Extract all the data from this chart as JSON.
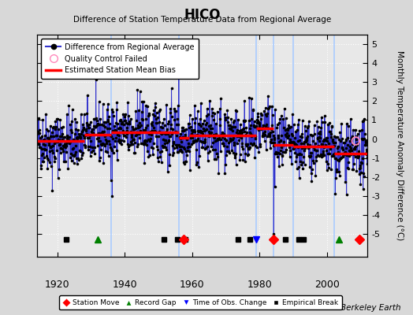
{
  "title": "HICO",
  "subtitle": "Difference of Station Temperature Data from Regional Average",
  "ylabel": "Monthly Temperature Anomaly Difference (°C)",
  "credit": "Berkeley Earth",
  "xlim": [
    1914,
    2012
  ],
  "ylim": [
    -6.2,
    5.5
  ],
  "yticks_right": [
    -5,
    -4,
    -3,
    -2,
    -1,
    0,
    1,
    2,
    3,
    4,
    5
  ],
  "ytick_labels_right": [
    "-5",
    "-4",
    "-3",
    "-2",
    "-1",
    "0",
    "1",
    "2",
    "3",
    "4",
    "5"
  ],
  "xticks": [
    1920,
    1940,
    1960,
    1980,
    2000
  ],
  "bg_color": "#d8d8d8",
  "plot_bg_color": "#e8e8e8",
  "grid_color": "white",
  "line_color": "#3333cc",
  "dot_color": "black",
  "bias_color": "red",
  "vline_color": "#aaccff",
  "vertical_lines_x": [
    1936,
    1956,
    1979,
    1984,
    1990,
    2002
  ],
  "bias_segments": [
    {
      "x": [
        1914,
        1928
      ],
      "y": [
        -0.1,
        -0.1
      ]
    },
    {
      "x": [
        1928,
        1936
      ],
      "y": [
        0.25,
        0.25
      ]
    },
    {
      "x": [
        1936,
        1956
      ],
      "y": [
        0.35,
        0.35
      ]
    },
    {
      "x": [
        1956,
        1959
      ],
      "y": [
        0.05,
        0.05
      ]
    },
    {
      "x": [
        1959,
        1979
      ],
      "y": [
        0.2,
        0.2
      ]
    },
    {
      "x": [
        1979,
        1984
      ],
      "y": [
        0.55,
        0.55
      ]
    },
    {
      "x": [
        1984,
        1990
      ],
      "y": [
        -0.3,
        -0.3
      ]
    },
    {
      "x": [
        1990,
        2002
      ],
      "y": [
        -0.4,
        -0.4
      ]
    },
    {
      "x": [
        2002,
        2012
      ],
      "y": [
        -0.75,
        -0.75
      ]
    }
  ],
  "station_moves": [
    1957.5,
    1984.0,
    2009.5
  ],
  "record_gaps": [
    1932.0,
    2003.5
  ],
  "obs_changes": [
    1979.0
  ],
  "emp_breaks": [
    1922.5,
    1951.5,
    1955.5,
    1958.0,
    1973.5,
    1977.0,
    1987.5,
    1991.5,
    1993.0
  ],
  "qc_failed_x": [
    2008.5
  ],
  "qc_failed_y": [
    -0.1
  ],
  "marker_y": -5.3,
  "seed": 42,
  "noise_std": 0.75
}
